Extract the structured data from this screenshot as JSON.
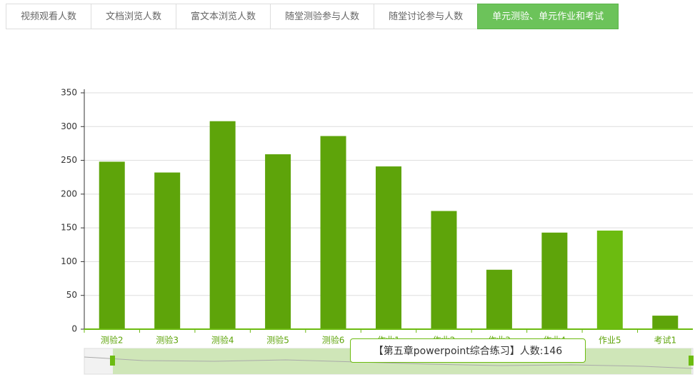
{
  "tabs": [
    "视频观看人数",
    "文档浏览人数",
    "富文本浏览人数",
    "随堂测验参与人数",
    "随堂讨论参与人数",
    "单元测验、单元作业和考试"
  ],
  "active_tab": 5,
  "chart_data": {
    "type": "bar",
    "categories": [
      "测验2",
      "测验3",
      "测验4",
      "测验5",
      "测验6",
      "作业1",
      "作业2",
      "作业3",
      "作业4",
      "作业5",
      "考试1"
    ],
    "values": [
      248,
      232,
      308,
      259,
      286,
      241,
      175,
      88,
      143,
      146,
      20
    ],
    "colors": [
      "#5ea40a",
      "#5ea40a",
      "#5ea40a",
      "#5ea40a",
      "#5ea40a",
      "#5ea40a",
      "#5ea40a",
      "#5ea40a",
      "#5ea40a",
      "#6cbb10",
      "#5ea40a"
    ],
    "ylim": [
      0,
      350
    ],
    "yticks": [
      0,
      50,
      100,
      150,
      200,
      250,
      300,
      350
    ],
    "grid": true,
    "tooltip": "【第五章powerpoint综合练习】人数:146"
  }
}
